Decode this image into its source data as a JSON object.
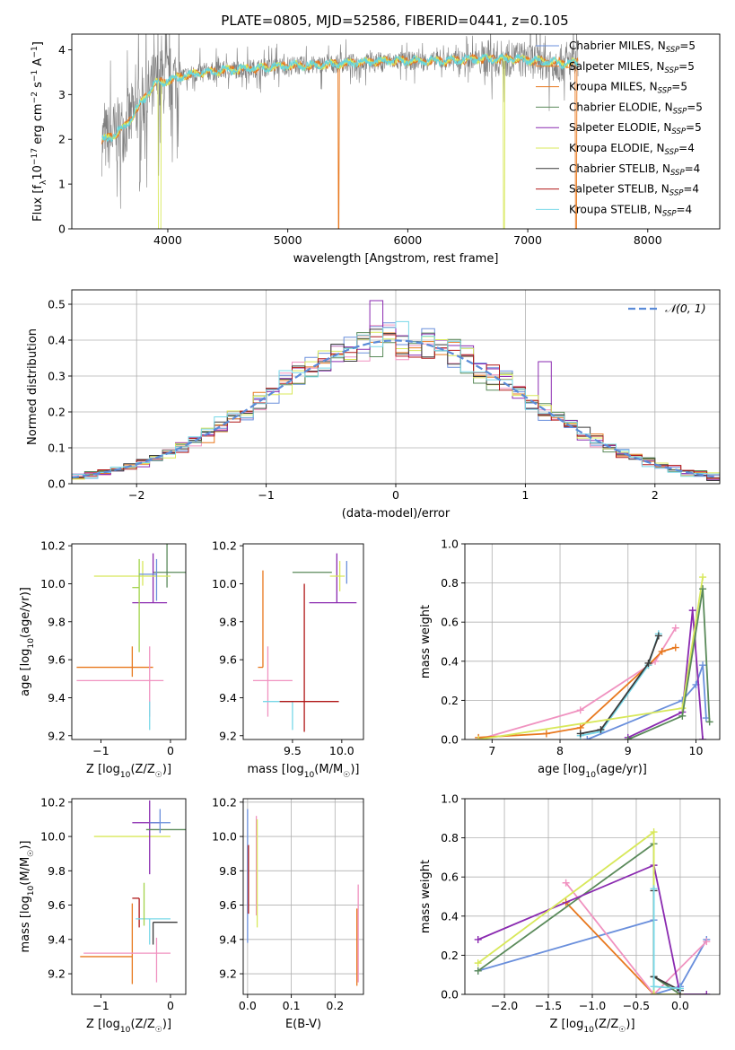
{
  "figure": {
    "title": "PLATE=0805, MJD=52586, FIBERID=0441, z=0.105"
  },
  "styles": {
    "line_colors": [
      "#6a8fdc",
      "#e8781e",
      "#f092c0",
      "#5a8a5a",
      "#8a2ab0",
      "#d8e85a",
      "#3a3a3a",
      "#b01818",
      "#78d8e8",
      "#a3d34b"
    ],
    "grid_color": "#b0b0b0",
    "spectrum_gray": "#808080",
    "spectrum_cyan": "#66d6dd",
    "normal_curve": "#5b8bd8"
  },
  "chart_data": [
    {
      "id": "spectrum",
      "type": "line",
      "title": "PLATE=0805, MJD=52586, FIBERID=0441, z=0.105",
      "xlabel": "wavelength [Angstrom, rest frame]",
      "ylabel": "Flux [f$_\\lambda$10$^{-17}$ erg cm$^{-2}$ s$^{-1}$ A$^{-1}$]",
      "xlim": [
        3200,
        8600
      ],
      "ylim": [
        0,
        4.35
      ],
      "xticks": [
        4000,
        5000,
        6000,
        7000,
        8000
      ],
      "yticks": [
        0,
        1,
        2,
        3,
        4
      ],
      "grid": false,
      "legend_position": "upper right",
      "legend": [
        {
          "prefix": "Chabrier MILES, N",
          "sub": "SSP",
          "suffix": "=5",
          "color": "#6a8fdc"
        },
        {
          "prefix": "Salpeter MILES, N",
          "sub": "SSP",
          "suffix": "=5",
          "color": "#e8781e"
        },
        {
          "prefix": "Kroupa MILES, N",
          "sub": "SSP",
          "suffix": "=5",
          "color": "#e8781e"
        },
        {
          "prefix": "Chabrier ELODIE, N",
          "sub": "SSP",
          "suffix": "=5",
          "color": "#5a8a5a"
        },
        {
          "prefix": "Salpeter ELODIE, N",
          "sub": "SSP",
          "suffix": "=5",
          "color": "#8a2ab0"
        },
        {
          "prefix": "Kroupa ELODIE, N",
          "sub": "SSP",
          "suffix": "=4",
          "color": "#d8e85a"
        },
        {
          "prefix": "Chabrier STELIB, N",
          "sub": "SSP",
          "suffix": "=4",
          "color": "#3a3a3a"
        },
        {
          "prefix": "Salpeter STELIB, N",
          "sub": "SSP",
          "suffix": "=4",
          "color": "#b01818"
        },
        {
          "prefix": "Kroupa STELIB, N",
          "sub": "SSP",
          "suffix": "=4",
          "color": "#78d8e8"
        }
      ],
      "continuum": {
        "x": [
          3450,
          3550,
          3650,
          3700,
          3800,
          3900,
          4000,
          4100,
          4300,
          4500,
          4800,
          5000,
          5200,
          5500,
          5800,
          6000,
          6300,
          6600,
          6900,
          7100,
          7300,
          7400
        ],
        "y": [
          1.95,
          2.1,
          2.3,
          2.5,
          2.9,
          3.25,
          3.3,
          3.4,
          3.5,
          3.55,
          3.6,
          3.65,
          3.65,
          3.7,
          3.75,
          3.75,
          3.75,
          3.8,
          3.8,
          3.75,
          3.7,
          3.7
        ]
      }
    },
    {
      "id": "residuals",
      "type": "histogram",
      "xlabel": "(data-model)/error",
      "ylabel": "Normed distribution",
      "xlim": [
        -2.5,
        2.5
      ],
      "ylim": [
        0,
        0.54
      ],
      "xticks": [
        -2,
        -1,
        0,
        1,
        2
      ],
      "yticks": [
        0.0,
        0.1,
        0.2,
        0.3,
        0.4,
        0.5
      ],
      "grid": true,
      "legend": {
        "label": "N(0,1)",
        "position": "upper right"
      },
      "bin_width": 0.1,
      "bin_start": -2.5
    },
    {
      "id": "age_vs_Z",
      "type": "errorbar",
      "xlabel": "Z [log10(Z/Z☉)]",
      "ylabel": "age [log10(age/yr)]",
      "xlim": [
        -1.42,
        0.22
      ],
      "ylim": [
        9.18,
        10.21
      ],
      "xticks": [
        -1,
        0
      ],
      "yticks": [
        9.2,
        9.4,
        9.6,
        9.8,
        10.0,
        10.2
      ],
      "grid": false,
      "points": [
        {
          "x": -0.55,
          "xerr": [
            0.8,
            0.3
          ],
          "y": 9.56,
          "yerr": [
            0.05,
            0.11
          ],
          "color": "#e8781e"
        },
        {
          "x": -0.3,
          "xerr": [
            1.05,
            0.2
          ],
          "y": 9.49,
          "yerr": [
            0.19,
            0.18
          ],
          "color": "#f092c0"
        },
        {
          "x": -0.05,
          "xerr": [
            0.2,
            0.35
          ],
          "y": 10.06,
          "yerr": [
            0.08,
            0.25
          ],
          "color": "#5a8a5a"
        },
        {
          "x": -0.25,
          "xerr": [
            0.3,
            0.2
          ],
          "y": 9.9,
          "yerr": [
            0.0,
            0.26
          ],
          "color": "#8a2ab0"
        },
        {
          "x": -0.4,
          "xerr": [
            0.7,
            0.4
          ],
          "y": 10.04,
          "yerr": [
            0.05,
            0.08
          ],
          "color": "#d8e85a"
        },
        {
          "x": -0.45,
          "xerr": [
            0.1,
            0.0
          ],
          "y": 9.98,
          "yerr": [
            0.34,
            0.15
          ],
          "color": "#a3d34b"
        },
        {
          "x": -0.2,
          "xerr": [
            0.25,
            0.0
          ],
          "y": 10.05,
          "yerr": [
            0.14,
            0.08
          ],
          "color": "#6a8fdc"
        },
        {
          "x": -0.3,
          "xerr": [
            0.0,
            0.0
          ],
          "y": 9.38,
          "yerr": [
            0.15,
            0.0
          ],
          "color": "#78d8e8"
        },
        {
          "x": -0.28,
          "xerr": [
            0.0,
            0.0
          ],
          "y": 9.38,
          "yerr": [
            0.0,
            0.0
          ],
          "color": "#3a3a3a"
        }
      ]
    },
    {
      "id": "age_vs_mass",
      "type": "errorbar",
      "xlabel": "mass [log10(M/M☉)]",
      "ylabel": "",
      "xlim": [
        9.0,
        10.22
      ],
      "ylim": [
        9.18,
        10.21
      ],
      "xticks": [
        9.5,
        10.0
      ],
      "yticks": [
        9.2,
        9.4,
        9.6,
        9.8,
        10.0,
        10.2
      ],
      "grid": false,
      "points": [
        {
          "x": 9.2,
          "xerr": [
            0.05,
            0.0
          ],
          "y": 9.56,
          "yerr": [
            0.0,
            0.51
          ],
          "color": "#e8781e"
        },
        {
          "x": 9.25,
          "xerr": [
            0.15,
            0.25
          ],
          "y": 9.49,
          "yerr": [
            0.19,
            0.18
          ],
          "color": "#f092c0"
        },
        {
          "x": 9.5,
          "xerr": [
            0.3,
            0.0
          ],
          "y": 9.38,
          "yerr": [
            0.15,
            0.0
          ],
          "color": "#78d8e8"
        },
        {
          "x": 9.62,
          "xerr": [
            0.25,
            0.35
          ],
          "y": 9.38,
          "yerr": [
            0.16,
            0.62
          ],
          "color": "#b01818"
        },
        {
          "x": 9.9,
          "xerr": [
            0.4,
            0.0
          ],
          "y": 10.06,
          "yerr": [
            0.0,
            0.0
          ],
          "color": "#5a8a5a"
        },
        {
          "x": 9.95,
          "xerr": [
            0.28,
            0.2
          ],
          "y": 9.9,
          "yerr": [
            0.0,
            0.26
          ],
          "color": "#8a2ab0"
        },
        {
          "x": 9.98,
          "xerr": [
            0.1,
            0.05
          ],
          "y": 10.04,
          "yerr": [
            0.08,
            0.08
          ],
          "color": "#d8e85a"
        },
        {
          "x": 10.05,
          "xerr": [
            0.0,
            0.0
          ],
          "y": 10.06,
          "yerr": [
            0.06,
            0.06
          ],
          "color": "#6a8fdc"
        }
      ]
    },
    {
      "id": "massweight_vs_age",
      "type": "line",
      "xlabel": "age [log10(age/yr)]",
      "ylabel": "mass weight",
      "xlim": [
        6.6,
        10.35
      ],
      "ylim": [
        0.0,
        1.0
      ],
      "xticks": [
        7,
        8,
        9,
        10
      ],
      "yticks": [
        0.0,
        0.2,
        0.4,
        0.6,
        0.8,
        1.0
      ],
      "grid": true,
      "series": [
        {
          "color": "#f092c0",
          "x": [
            6.8,
            8.3,
            9.4,
            9.7
          ],
          "y": [
            0.0,
            0.15,
            0.4,
            0.57
          ]
        },
        {
          "color": "#e8781e",
          "x": [
            6.8,
            7.8,
            8.3,
            9.3,
            9.5,
            9.7
          ],
          "y": [
            0.01,
            0.03,
            0.06,
            0.38,
            0.45,
            0.47
          ]
        },
        {
          "color": "#78d8e8",
          "x": [
            8.3,
            8.6,
            9.3,
            9.45
          ],
          "y": [
            0.02,
            0.04,
            0.38,
            0.54
          ]
        },
        {
          "color": "#3a3a3a",
          "x": [
            8.3,
            8.6,
            9.3,
            9.45
          ],
          "y": [
            0.03,
            0.05,
            0.39,
            0.53
          ]
        },
        {
          "color": "#6a8fdc",
          "x": [
            8.4,
            9.8,
            10.0,
            10.1,
            10.15
          ],
          "y": [
            0.0,
            0.2,
            0.28,
            0.38,
            0.11
          ]
        },
        {
          "color": "#8a2ab0",
          "x": [
            9.0,
            9.8,
            9.95,
            10.1
          ],
          "y": [
            0.01,
            0.14,
            0.66,
            0.0
          ]
        },
        {
          "color": "#d8e85a",
          "x": [
            6.8,
            9.8,
            10.1
          ],
          "y": [
            0.0,
            0.16,
            0.83
          ]
        },
        {
          "color": "#5a8a5a",
          "x": [
            9.0,
            9.8,
            10.1,
            10.2
          ],
          "y": [
            0.0,
            0.12,
            0.77,
            0.09
          ]
        }
      ]
    },
    {
      "id": "mass_vs_Z",
      "type": "errorbar",
      "xlabel": "Z [log10(Z/Z☉)]",
      "ylabel": "mass [log10(M/M☉)]",
      "xlim": [
        -1.42,
        0.22
      ],
      "ylim": [
        9.08,
        10.22
      ],
      "xticks": [
        -1,
        0
      ],
      "yticks": [
        9.2,
        9.4,
        9.6,
        9.8,
        10.0,
        10.2
      ],
      "grid": false,
      "points": [
        {
          "x": -0.55,
          "xerr": [
            0.75,
            0.0
          ],
          "y": 9.3,
          "yerr": [
            0.16,
            0.31
          ],
          "color": "#e8781e"
        },
        {
          "x": -0.2,
          "xerr": [
            1.05,
            0.2
          ],
          "y": 9.32,
          "yerr": [
            0.17,
            0.09
          ],
          "color": "#f092c0"
        },
        {
          "x": -0.45,
          "xerr": [
            0.1,
            0.0
          ],
          "y": 9.64,
          "yerr": [
            0.17,
            0.0
          ],
          "color": "#b01818"
        },
        {
          "x": -0.3,
          "xerr": [
            0.2,
            0.3
          ],
          "y": 9.52,
          "yerr": [
            0.15,
            0.0
          ],
          "color": "#78d8e8"
        },
        {
          "x": -0.25,
          "xerr": [
            0.0,
            0.35
          ],
          "y": 9.5,
          "yerr": [
            0.13,
            0.0
          ],
          "color": "#3a3a3a"
        },
        {
          "x": -0.4,
          "xerr": [
            0.7,
            0.4
          ],
          "y": 10.0,
          "yerr": [
            0.0,
            0.0
          ],
          "color": "#d8e85a"
        },
        {
          "x": -0.3,
          "xerr": [
            0.25,
            0.15
          ],
          "y": 10.08,
          "yerr": [
            0.3,
            0.13
          ],
          "color": "#8a2ab0"
        },
        {
          "x": -0.05,
          "xerr": [
            0.3,
            0.35
          ],
          "y": 10.04,
          "yerr": [
            0.0,
            0.0
          ],
          "color": "#5a8a5a"
        },
        {
          "x": -0.15,
          "xerr": [
            0.15,
            0.15
          ],
          "y": 10.08,
          "yerr": [
            0.06,
            0.08
          ],
          "color": "#6a8fdc"
        },
        {
          "x": -0.38,
          "xerr": [
            0.0,
            0.0
          ],
          "y": 9.58,
          "yerr": [
            0.1,
            0.15
          ],
          "color": "#a3d34b"
        }
      ]
    },
    {
      "id": "mass_vs_ebv",
      "type": "errorbar",
      "xlabel": "E(B-V)",
      "ylabel": "",
      "xlim": [
        -0.01,
        0.265
      ],
      "ylim": [
        9.08,
        10.22
      ],
      "xticks": [
        0.0,
        0.1,
        0.2
      ],
      "yticks": [
        9.2,
        9.4,
        9.6,
        9.8,
        10.0,
        10.2
      ],
      "grid": true,
      "points": [
        {
          "x": 0.0,
          "xerr": [
            0.0,
            0.0
          ],
          "y": 9.68,
          "yerr": [
            0.3,
            0.48
          ],
          "color": "#6a8fdc"
        },
        {
          "x": 0.002,
          "xerr": [
            0.0,
            0.0
          ],
          "y": 9.7,
          "yerr": [
            0.15,
            0.25
          ],
          "color": "#b01818"
        },
        {
          "x": 0.02,
          "xerr": [
            0.0,
            0.0
          ],
          "y": 9.82,
          "yerr": [
            0.28,
            0.3
          ],
          "color": "#f092c0"
        },
        {
          "x": 0.022,
          "xerr": [
            0.0,
            0.0
          ],
          "y": 9.75,
          "yerr": [
            0.28,
            0.35
          ],
          "color": "#d8e85a"
        },
        {
          "x": 0.25,
          "xerr": [
            0.0,
            0.0
          ],
          "y": 9.38,
          "yerr": [
            0.25,
            0.2
          ],
          "color": "#e8781e"
        },
        {
          "x": 0.253,
          "xerr": [
            0.0,
            0.0
          ],
          "y": 9.42,
          "yerr": [
            0.27,
            0.3
          ],
          "color": "#f092c0"
        }
      ]
    },
    {
      "id": "massweight_vs_Z",
      "type": "line",
      "xlabel": "Z [log10(Z/Z☉)]",
      "ylabel": "mass weight",
      "xlim": [
        -2.45,
        0.45
      ],
      "ylim": [
        0.0,
        1.0
      ],
      "xticks": [
        -2.0,
        -1.5,
        -1.0,
        -0.5,
        0.0
      ],
      "yticks": [
        0.0,
        0.2,
        0.4,
        0.6,
        0.8,
        1.0
      ],
      "grid": true,
      "series": [
        {
          "color": "#6a8fdc",
          "x": [
            -2.3,
            -0.3,
            -0.3,
            0.0,
            0.3
          ],
          "y": [
            0.12,
            0.38,
            0.0,
            0.04,
            0.28
          ]
        },
        {
          "color": "#e8781e",
          "x": [
            -1.3,
            -0.3,
            -0.3
          ],
          "y": [
            0.47,
            0.0,
            0.0
          ]
        },
        {
          "color": "#f092c0",
          "x": [
            -1.3,
            -0.3,
            0.3
          ],
          "y": [
            0.57,
            0.0,
            0.27
          ]
        },
        {
          "color": "#5a8a5a",
          "x": [
            -2.3,
            -0.3,
            -0.3,
            0.0
          ],
          "y": [
            0.12,
            0.77,
            0.09,
            0.0
          ]
        },
        {
          "color": "#8a2ab0",
          "x": [
            -2.3,
            -0.3,
            0.0,
            0.3
          ],
          "y": [
            0.28,
            0.66,
            0.0,
            0.0
          ]
        },
        {
          "color": "#d8e85a",
          "x": [
            -2.3,
            -0.3,
            -0.3,
            0.0
          ],
          "y": [
            0.16,
            0.83,
            0.0,
            0.0
          ]
        },
        {
          "color": "#3a3a3a",
          "x": [
            -0.3,
            -0.3,
            0.0
          ],
          "y": [
            0.53,
            0.09,
            0.02
          ]
        },
        {
          "color": "#78d8e8",
          "x": [
            -0.3,
            -0.3,
            0.0
          ],
          "y": [
            0.54,
            0.04,
            0.03
          ]
        }
      ]
    }
  ]
}
